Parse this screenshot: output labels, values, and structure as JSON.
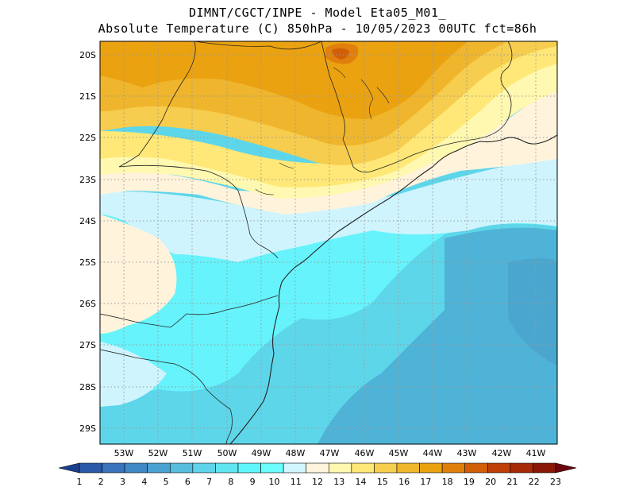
{
  "title_line1": "DIMNT/CGCT/INPE -  Model Eta05_M01_",
  "title_line2": "Absolute Temperature (C) 850hPa -  10/05/2023 00UTC fct=86h",
  "lat_labels": [
    "20S",
    "21S",
    "22S",
    "23S",
    "24S",
    "25S",
    "26S",
    "27S",
    "28S",
    "29S"
  ],
  "lon_labels": [
    "53W",
    "52W",
    "51W",
    "50W",
    "49W",
    "48W",
    "47W",
    "46W",
    "45W",
    "44W",
    "43W",
    "42W",
    "41W"
  ],
  "colorbar": {
    "labels": [
      "1",
      "2",
      "3",
      "4",
      "5",
      "6",
      "7",
      "8",
      "9",
      "10",
      "11",
      "12",
      "13",
      "14",
      "15",
      "16",
      "17",
      "18",
      "19",
      "20",
      "21",
      "22",
      "23"
    ],
    "colors": [
      "#1b3f8f",
      "#2a59a8",
      "#3a73bb",
      "#3f8ac6",
      "#4aa2d2",
      "#58bcdf",
      "#5fd3ea",
      "#5fe6f2",
      "#5ff6fb",
      "#6cfefe",
      "#d2f6fd",
      "#fff4dc",
      "#fff8b0",
      "#ffe878",
      "#f7cf4e",
      "#f0b62d",
      "#eba210",
      "#e0800c",
      "#d05f08",
      "#bf4006",
      "#a52a05",
      "#8a1707",
      "#6c0710"
    ]
  },
  "grid": {
    "lat_range": [
      -29.4,
      -19.85
    ],
    "lon_range": [
      -53.8,
      -40.35
    ]
  }
}
